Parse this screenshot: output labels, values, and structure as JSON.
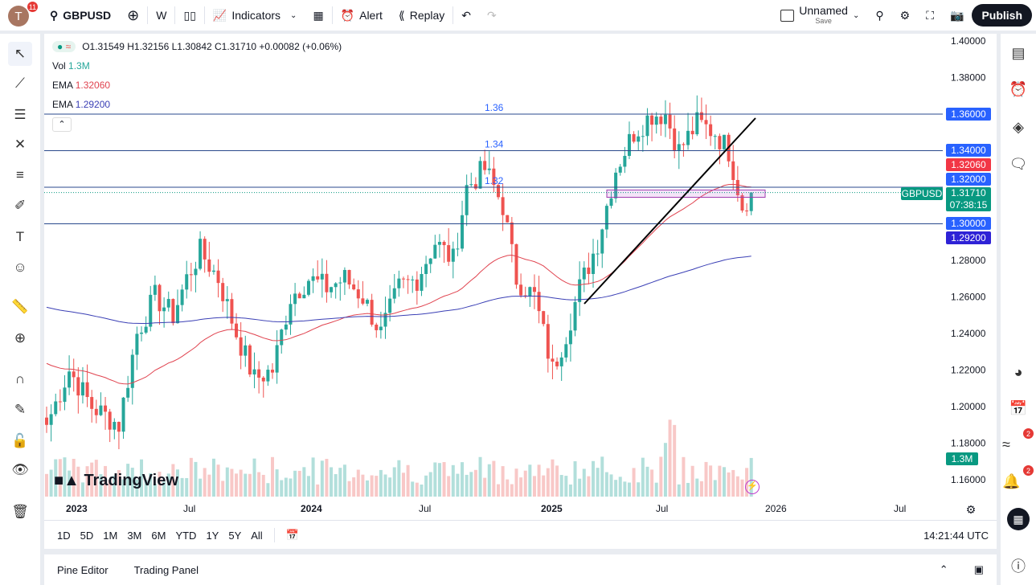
{
  "toolbar": {
    "avatar_letter": "T",
    "notifications": "11",
    "symbol": "GBPUSD",
    "interval": "W",
    "indicators": "Indicators",
    "alert": "Alert",
    "replay": "Replay",
    "layout_name": "Unnamed",
    "layout_save": "Save",
    "publish": "Publish"
  },
  "legend": {
    "ohlc": "O1.31549 H1.32156 L1.30842 C1.31710 +0.00082 (+0.06%)",
    "vol_label": "Vol",
    "vol_value": "1.3M",
    "ema1_label": "EMA",
    "ema1_value": "1.32060",
    "ema2_label": "EMA",
    "ema2_value": "1.29200"
  },
  "price_axis": {
    "ticks": [
      "1.40000",
      "1.38000",
      "1.36000",
      "1.34000",
      "1.32000",
      "1.30000",
      "1.28000",
      "1.26000",
      "1.24000",
      "1.22000",
      "1.20000",
      "1.18000",
      "1.16000"
    ],
    "tags": {
      "l136": "1.36000",
      "l134": "1.34000",
      "ema1": "1.32060",
      "l132": "1.32000",
      "symbol": "GBPUSD",
      "last": "1.31710",
      "countdown": "07:38:15",
      "l130": "1.30000",
      "ema2": "1.29200",
      "vol": "1.3M"
    }
  },
  "line_labels": {
    "l136": "1.36",
    "l134": "1.34",
    "l132": "1.32"
  },
  "time_axis": [
    "2023",
    "Jul",
    "2024",
    "Jul",
    "2025",
    "Jul",
    "2026",
    "Jul"
  ],
  "ranges": [
    "1D",
    "5D",
    "1M",
    "3M",
    "6M",
    "YTD",
    "1Y",
    "5Y",
    "All"
  ],
  "clock": "14:21:44 UTC",
  "bottom": {
    "pine": "Pine Editor",
    "trading": "Trading Panel"
  },
  "watermark": "TradingView",
  "right_badges": {
    "ideas": "2",
    "notifications": "2"
  },
  "colors": {
    "up": "#26a69a",
    "down": "#ef5350",
    "ema_fast": "#e0434f",
    "ema_slow": "#3a3fb5",
    "hline": "#2962ff",
    "last": "#089981"
  },
  "chart_data": {
    "type": "candlestick",
    "symbol": "GBPUSD",
    "interval": "weekly",
    "ylim": [
      1.15,
      1.405
    ],
    "horizontal_lines": [
      1.36,
      1.34,
      1.32,
      1.3
    ],
    "zone": [
      1.3145,
      1.3185
    ],
    "close_keypoints": [
      [
        "2022-11-14",
        1.19
      ],
      [
        "2022-12-19",
        1.22
      ],
      [
        "2023-01-23",
        1.2
      ],
      [
        "2023-03-06",
        1.19
      ],
      [
        "2023-04-03",
        1.24
      ],
      [
        "2023-05-01",
        1.26
      ],
      [
        "2023-05-29",
        1.25
      ],
      [
        "2023-06-19",
        1.27
      ],
      [
        "2023-07-10",
        1.285
      ],
      [
        "2023-08-07",
        1.27
      ],
      [
        "2023-09-04",
        1.24
      ],
      [
        "2023-10-02",
        1.215
      ],
      [
        "2023-10-30",
        1.22
      ],
      [
        "2023-11-27",
        1.26
      ],
      [
        "2023-12-25",
        1.27
      ],
      [
        "2024-01-22",
        1.265
      ],
      [
        "2024-02-19",
        1.27
      ],
      [
        "2024-03-18",
        1.26
      ],
      [
        "2024-04-15",
        1.24
      ],
      [
        "2024-05-13",
        1.265
      ],
      [
        "2024-06-10",
        1.27
      ],
      [
        "2024-07-08",
        1.29
      ],
      [
        "2024-08-05",
        1.28
      ],
      [
        "2024-08-26",
        1.32
      ],
      [
        "2024-09-23",
        1.33
      ],
      [
        "2024-10-21",
        1.31
      ],
      [
        "2024-11-11",
        1.27
      ],
      [
        "2024-12-09",
        1.26
      ],
      [
        "2025-01-06",
        1.22
      ],
      [
        "2025-01-27",
        1.24
      ],
      [
        "2025-02-17",
        1.265
      ],
      [
        "2025-03-17",
        1.29
      ],
      [
        "2025-04-14",
        1.33
      ],
      [
        "2025-05-12",
        1.35
      ],
      [
        "2025-06-09",
        1.36
      ],
      [
        "2025-06-30",
        1.36
      ],
      [
        "2025-07-21",
        1.34
      ],
      [
        "2025-08-18",
        1.355
      ],
      [
        "2025-09-15",
        1.35
      ],
      [
        "2025-10-06",
        1.34
      ],
      [
        "2025-10-27",
        1.31
      ],
      [
        "2025-11-10",
        1.3171
      ]
    ]
  }
}
